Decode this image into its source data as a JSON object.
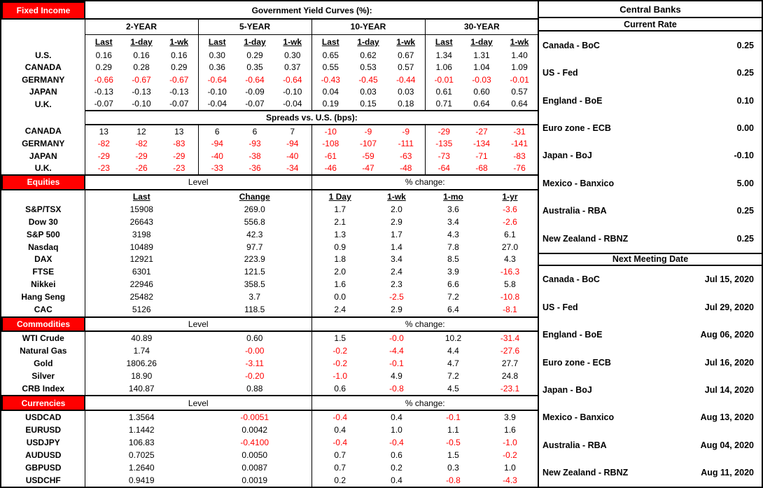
{
  "colors": {
    "accent_red": "#FF0000",
    "negative_text": "#FF0000",
    "border": "#000000",
    "background": "#FFFFFF"
  },
  "fixed_income": {
    "section_label": "Fixed Income",
    "title": "Government Yield Curves (%):",
    "groups": [
      "2-YEAR",
      "5-YEAR",
      "10-YEAR",
      "30-YEAR"
    ],
    "subheaders": [
      "Last",
      "1-day",
      "1-wk"
    ],
    "yield_rows": [
      {
        "label": "U.S.",
        "values": [
          "0.16",
          "0.16",
          "0.16",
          "0.30",
          "0.29",
          "0.30",
          "0.65",
          "0.62",
          "0.67",
          "1.34",
          "1.31",
          "1.40"
        ],
        "red": []
      },
      {
        "label": "CANADA",
        "values": [
          "0.29",
          "0.28",
          "0.29",
          "0.36",
          "0.35",
          "0.37",
          "0.55",
          "0.53",
          "0.57",
          "1.06",
          "1.04",
          "1.09"
        ],
        "red": []
      },
      {
        "label": "GERMANY",
        "values": [
          "-0.66",
          "-0.67",
          "-0.67",
          "-0.64",
          "-0.64",
          "-0.64",
          "-0.43",
          "-0.45",
          "-0.44",
          "-0.01",
          "-0.03",
          "-0.01"
        ],
        "red": [
          0,
          1,
          2,
          3,
          4,
          5,
          6,
          7,
          8,
          9,
          10,
          11
        ]
      },
      {
        "label": "JAPAN",
        "values": [
          "-0.13",
          "-0.13",
          "-0.13",
          "-0.10",
          "-0.09",
          "-0.10",
          "0.04",
          "0.03",
          "0.03",
          "0.61",
          "0.60",
          "0.57"
        ],
        "red": []
      },
      {
        "label": "U.K.",
        "values": [
          "-0.07",
          "-0.10",
          "-0.07",
          "-0.04",
          "-0.07",
          "-0.04",
          "0.19",
          "0.15",
          "0.18",
          "0.71",
          "0.64",
          "0.64"
        ],
        "red": []
      }
    ],
    "spreads_title": "Spreads vs. U.S. (bps):",
    "spread_rows": [
      {
        "label": "CANADA",
        "values": [
          "13",
          "12",
          "13",
          "6",
          "6",
          "7",
          "-10",
          "-9",
          "-9",
          "-29",
          "-27",
          "-31"
        ],
        "red": [
          6,
          7,
          8,
          9,
          10,
          11
        ]
      },
      {
        "label": "GERMANY",
        "values": [
          "-82",
          "-82",
          "-83",
          "-94",
          "-93",
          "-94",
          "-108",
          "-107",
          "-111",
          "-135",
          "-134",
          "-141"
        ],
        "red": [
          0,
          1,
          2,
          3,
          4,
          5,
          6,
          7,
          8,
          9,
          10,
          11
        ]
      },
      {
        "label": "JAPAN",
        "values": [
          "-29",
          "-29",
          "-29",
          "-40",
          "-38",
          "-40",
          "-61",
          "-59",
          "-63",
          "-73",
          "-71",
          "-83"
        ],
        "red": [
          0,
          1,
          2,
          3,
          4,
          5,
          6,
          7,
          8,
          9,
          10,
          11
        ]
      },
      {
        "label": "U.K.",
        "values": [
          "-23",
          "-26",
          "-23",
          "-33",
          "-36",
          "-34",
          "-46",
          "-47",
          "-48",
          "-64",
          "-68",
          "-76"
        ],
        "red": [
          0,
          1,
          2,
          3,
          4,
          5,
          6,
          7,
          8,
          9,
          10,
          11
        ]
      }
    ]
  },
  "equities": {
    "section_label": "Equities",
    "level_label": "Level",
    "pct_label": "% change:",
    "columns": [
      "Last",
      "Change",
      "1 Day",
      "1-wk",
      "1-mo",
      "1-yr"
    ],
    "rows": [
      {
        "label": "S&P/TSX",
        "values": [
          "15908",
          "269.0",
          "1.7",
          "2.0",
          "3.6",
          "-3.6"
        ],
        "red": [
          5
        ]
      },
      {
        "label": "Dow 30",
        "values": [
          "26643",
          "556.8",
          "2.1",
          "2.9",
          "3.4",
          "-2.6"
        ],
        "red": [
          5
        ]
      },
      {
        "label": "S&P 500",
        "values": [
          "3198",
          "42.3",
          "1.3",
          "1.7",
          "4.3",
          "6.1"
        ],
        "red": []
      },
      {
        "label": "Nasdaq",
        "values": [
          "10489",
          "97.7",
          "0.9",
          "1.4",
          "7.8",
          "27.0"
        ],
        "red": []
      },
      {
        "label": "DAX",
        "values": [
          "12921",
          "223.9",
          "1.8",
          "3.4",
          "8.5",
          "4.3"
        ],
        "red": []
      },
      {
        "label": "FTSE",
        "values": [
          "6301",
          "121.5",
          "2.0",
          "2.4",
          "3.9",
          "-16.3"
        ],
        "red": [
          5
        ]
      },
      {
        "label": "Nikkei",
        "values": [
          "22946",
          "358.5",
          "1.6",
          "2.3",
          "6.6",
          "5.8"
        ],
        "red": []
      },
      {
        "label": "Hang Seng",
        "values": [
          "25482",
          "3.7",
          "0.0",
          "-2.5",
          "7.2",
          "-10.8"
        ],
        "red": [
          3,
          5
        ]
      },
      {
        "label": "CAC",
        "values": [
          "5126",
          "118.5",
          "2.4",
          "2.9",
          "6.4",
          "-8.1"
        ],
        "red": [
          5
        ]
      }
    ]
  },
  "commodities": {
    "section_label": "Commodities",
    "level_label": "Level",
    "pct_label": "% change:",
    "rows": [
      {
        "label": "WTI Crude",
        "values": [
          "40.89",
          "0.60",
          "1.5",
          "-0.0",
          "10.2",
          "-31.4"
        ],
        "red": [
          3,
          5
        ]
      },
      {
        "label": "Natural Gas",
        "values": [
          "1.74",
          "-0.00",
          "-0.2",
          "-4.4",
          "4.4",
          "-27.6"
        ],
        "red": [
          1,
          2,
          3,
          5
        ]
      },
      {
        "label": "Gold",
        "values": [
          "1806.26",
          "-3.11",
          "-0.2",
          "-0.1",
          "4.7",
          "27.7"
        ],
        "red": [
          1,
          2,
          3
        ]
      },
      {
        "label": "Silver",
        "values": [
          "18.90",
          "-0.20",
          "-1.0",
          "4.9",
          "7.2",
          "24.8"
        ],
        "red": [
          1,
          2
        ]
      },
      {
        "label": "CRB Index",
        "values": [
          "140.87",
          "0.88",
          "0.6",
          "-0.8",
          "4.5",
          "-23.1"
        ],
        "red": [
          3,
          5
        ]
      }
    ]
  },
  "currencies": {
    "section_label": "Currencies",
    "level_label": "Level",
    "pct_label": "% change:",
    "rows": [
      {
        "label": "USDCAD",
        "values": [
          "1.3564",
          "-0.0051",
          "-0.4",
          "0.4",
          "-0.1",
          "3.9"
        ],
        "red": [
          1,
          2,
          4
        ]
      },
      {
        "label": "EURUSD",
        "values": [
          "1.1442",
          "0.0042",
          "0.4",
          "1.0",
          "1.1",
          "1.6"
        ],
        "red": []
      },
      {
        "label": "USDJPY",
        "values": [
          "106.83",
          "-0.4100",
          "-0.4",
          "-0.4",
          "-0.5",
          "-1.0"
        ],
        "red": [
          1,
          2,
          3,
          4,
          5
        ]
      },
      {
        "label": "AUDUSD",
        "values": [
          "0.7025",
          "0.0050",
          "0.7",
          "0.6",
          "1.5",
          "-0.2"
        ],
        "red": [
          5
        ]
      },
      {
        "label": "GBPUSD",
        "values": [
          "1.2640",
          "0.0087",
          "0.7",
          "0.2",
          "0.3",
          "1.0"
        ],
        "red": []
      },
      {
        "label": "USDCHF",
        "values": [
          "0.9419",
          "0.0019",
          "0.2",
          "0.4",
          "-0.8",
          "-4.3"
        ],
        "red": [
          4,
          5
        ]
      }
    ]
  },
  "central_banks": {
    "title": "Central Banks",
    "current_rate": {
      "title": "Current Rate",
      "rows": [
        {
          "label": "Canada - BoC",
          "value": "0.25"
        },
        {
          "label": "US - Fed",
          "value": "0.25"
        },
        {
          "label": "England - BoE",
          "value": "0.10"
        },
        {
          "label": "Euro zone - ECB",
          "value": "0.00"
        },
        {
          "label": "Japan - BoJ",
          "value": "-0.10"
        },
        {
          "label": "Mexico - Banxico",
          "value": "5.00"
        },
        {
          "label": "Australia - RBA",
          "value": "0.25"
        },
        {
          "label": "New Zealand - RBNZ",
          "value": "0.25"
        }
      ]
    },
    "next_meeting": {
      "title": "Next Meeting Date",
      "rows": [
        {
          "label": "Canada - BoC",
          "value": "Jul 15, 2020"
        },
        {
          "label": "US - Fed",
          "value": "Jul 29, 2020"
        },
        {
          "label": "England - BoE",
          "value": "Aug 06, 2020"
        },
        {
          "label": "Euro zone - ECB",
          "value": "Jul 16, 2020"
        },
        {
          "label": "Japan - BoJ",
          "value": "Jul 14, 2020"
        },
        {
          "label": "Mexico - Banxico",
          "value": "Aug 13, 2020"
        },
        {
          "label": "Australia - RBA",
          "value": "Aug 04, 2020"
        },
        {
          "label": "New Zealand - RBNZ",
          "value": "Aug 11, 2020"
        }
      ]
    }
  }
}
